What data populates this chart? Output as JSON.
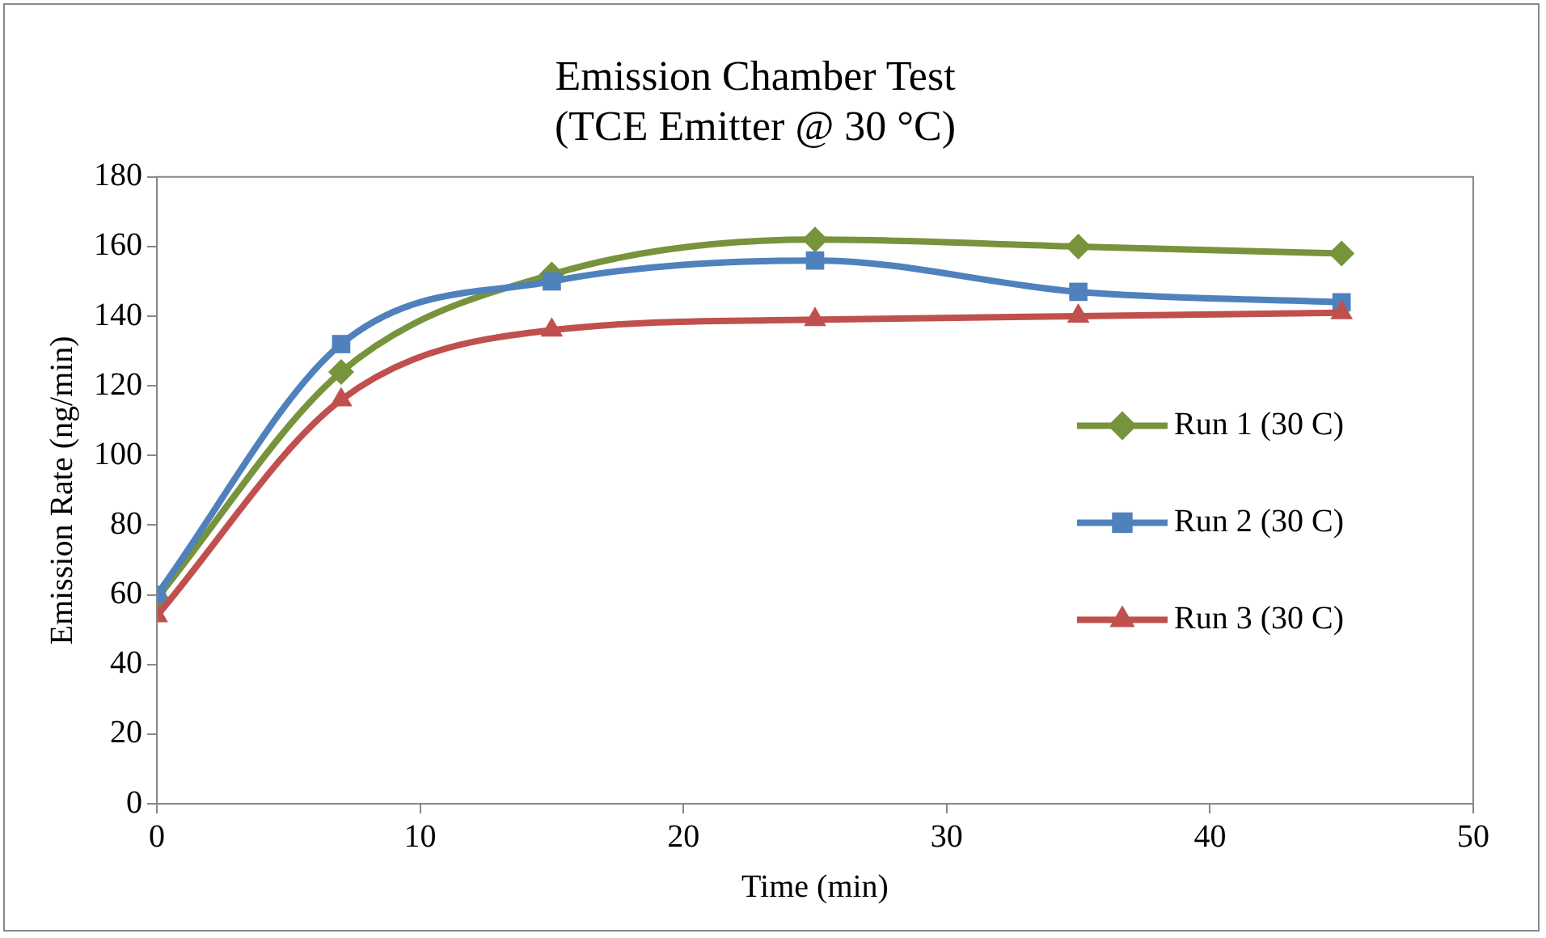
{
  "chart_data": {
    "type": "line",
    "title": "Emission Chamber Test\n(TCE Emitter @ 30 °C)",
    "xlabel": "Time (min)",
    "ylabel": "Emission Rate (ng/min)",
    "x": [
      0,
      7,
      15,
      25,
      35,
      45
    ],
    "series": [
      {
        "name": "Run 1 (30 C)",
        "color": "#77933c",
        "marker": "diamond",
        "values": [
          59,
          124,
          152,
          162,
          160,
          158
        ]
      },
      {
        "name": "Run 2 (30 C)",
        "color": "#4f81bd",
        "marker": "square",
        "values": [
          60,
          132,
          150,
          156,
          147,
          144
        ]
      },
      {
        "name": "Run 3 (30 C)",
        "color": "#c0504d",
        "marker": "triangle",
        "values": [
          54,
          116,
          136,
          139,
          140,
          141
        ]
      }
    ],
    "xlim": [
      0,
      50
    ],
    "xticks": [
      0,
      10,
      20,
      30,
      40,
      50
    ],
    "ylim": [
      0,
      180
    ],
    "yticks": [
      0,
      20,
      40,
      60,
      80,
      100,
      120,
      140,
      160,
      180
    ],
    "grid": false,
    "legend": "right",
    "line_style": "solid"
  }
}
